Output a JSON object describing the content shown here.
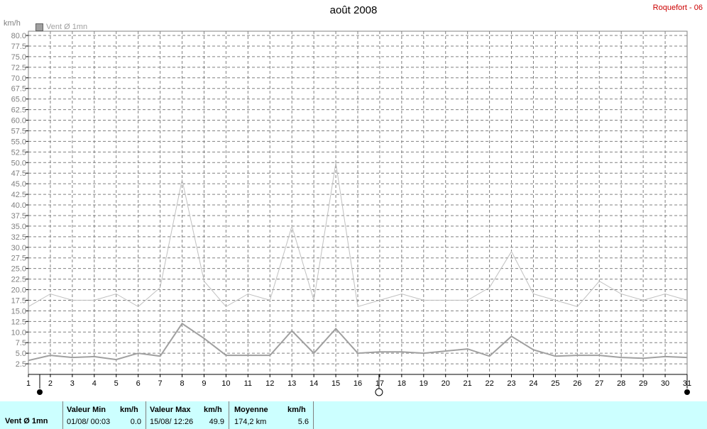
{
  "header": {
    "title": "août 2008",
    "station": "Roquefort - 06",
    "unit": "km/h",
    "legend_label": "Vent Ø 1mn"
  },
  "footer": {
    "series_label": "Vent Ø 1mn",
    "min": {
      "label": "Valeur Min",
      "unit": "km/h",
      "when": "01/08/  00:03",
      "value": "0.0"
    },
    "max": {
      "label": "Valeur Max",
      "unit": "km/h",
      "when": "15/08/  12:26",
      "value": "49.9"
    },
    "avg": {
      "label": "Moyenne",
      "unit": "km/h",
      "distance": "174,2 km",
      "value": "5.6"
    }
  },
  "colors": {
    "grid": "#808080",
    "max_line": "#c0c0c0",
    "avg_line": "#a0a0a0",
    "station": "#cc0000",
    "footer_bg": "#ccffff"
  },
  "chart_data": {
    "type": "line",
    "title": "août 2008",
    "ylabel": "km/h",
    "ylim": [
      0,
      80
    ],
    "y_ticks": [
      "2.5",
      "5.0",
      "7.5",
      "10.0",
      "12.5",
      "15.0",
      "17.5",
      "20.0",
      "22.5",
      "25.0",
      "27.5",
      "30.0",
      "32.5",
      "35.0",
      "37.5",
      "40.0",
      "42.5",
      "45.0",
      "47.5",
      "50.0",
      "52.5",
      "55.0",
      "57.5",
      "60.0",
      "62.5",
      "65.0",
      "67.5",
      "70.0",
      "72.5",
      "75.0",
      "77.5",
      "80.0"
    ],
    "x": [
      1,
      2,
      3,
      4,
      5,
      6,
      7,
      8,
      9,
      10,
      11,
      12,
      13,
      14,
      15,
      16,
      17,
      18,
      19,
      20,
      21,
      22,
      23,
      24,
      25,
      26,
      27,
      28,
      29,
      30,
      31
    ],
    "x_labels": [
      "1",
      "2",
      "3",
      "4",
      "5",
      "6",
      "7",
      "8",
      "9",
      "10",
      "11",
      "12",
      "13",
      "14",
      "15",
      "16",
      "17",
      "18",
      "19",
      "20",
      "21",
      "22",
      "23",
      "24",
      "25",
      "26",
      "27",
      "28",
      "29",
      "30",
      "31"
    ],
    "grid": true,
    "legend": "top-left",
    "series": [
      {
        "name": "Vent Ø 1mn",
        "values": [
          3.3,
          4.5,
          4.0,
          4.2,
          3.5,
          5.0,
          4.3,
          12.0,
          8.5,
          4.5,
          4.5,
          4.5,
          10.3,
          5.0,
          10.8,
          5.0,
          5.3,
          5.3,
          5.0,
          5.5,
          6.0,
          4.3,
          9.0,
          5.8,
          4.3,
          4.5,
          4.5,
          4.0,
          3.8,
          4.2,
          4.0
        ]
      },
      {
        "values": [
          16.0,
          19.0,
          17.5,
          17.5,
          19.0,
          16.0,
          20.5,
          46.0,
          22.0,
          16.0,
          19.0,
          17.5,
          35.0,
          17.5,
          49.9,
          16.0,
          17.5,
          19.0,
          17.5,
          17.5,
          17.5,
          20.5,
          29.0,
          19.0,
          17.5,
          16.0,
          22.0,
          19.0,
          17.5,
          19.0,
          17.5
        ]
      }
    ]
  }
}
